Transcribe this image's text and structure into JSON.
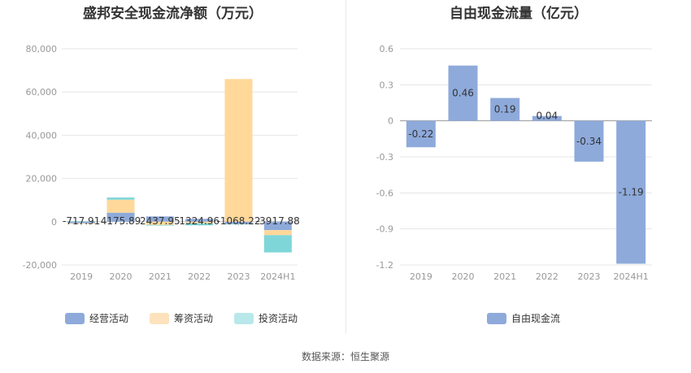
{
  "left": {
    "title": "盛邦安全现金流净额（万元）",
    "legend": [
      "经营活动",
      "筹资活动",
      "投资活动"
    ],
    "colors": {
      "operating": "#8eaadb",
      "financing": "#ffd89a",
      "investing": "#7fd6d9"
    },
    "legend_colors": {
      "operating": "#8eaadb",
      "financing": "#fde2bd",
      "investing": "#b9e8ea"
    }
  },
  "right": {
    "title": "自由现金流量（亿元）",
    "legend": [
      "自由现金流"
    ],
    "colors": {
      "fcf": "#8eaadb"
    }
  },
  "source": "数据来源：恒生聚源",
  "chart_data": [
    {
      "type": "bar",
      "stacked": true,
      "title": "盛邦安全现金流净额（万元）",
      "categories": [
        "2019",
        "2020",
        "2021",
        "2022",
        "2023",
        "2024H1"
      ],
      "ylim": [
        -20000,
        80000
      ],
      "yticks": [
        80000,
        60000,
        40000,
        20000,
        0,
        -20000
      ],
      "ytick_labels": [
        "80,000",
        "60,000",
        "40,000",
        "20,000",
        "0",
        "-20,000"
      ],
      "series": [
        {
          "name": "经营活动",
          "values": [
            -717.91,
            4175.89,
            2437.95,
            1324.96,
            -1068.22,
            -3917.88
          ]
        },
        {
          "name": "筹资活动",
          "values": [
            -300,
            6000,
            -1500,
            -700,
            66000,
            -2300
          ]
        },
        {
          "name": "投资活动",
          "values": [
            200,
            1000,
            -300,
            -1000,
            -200,
            -8000
          ]
        }
      ],
      "data_labels": [
        "-717.91",
        "4175.89",
        "2437.95",
        "1324.96",
        "-1068.22",
        "-3917.88"
      ],
      "legend_position": "bottom"
    },
    {
      "type": "bar",
      "title": "自由现金流量（亿元）",
      "categories": [
        "2019",
        "2020",
        "2021",
        "2022",
        "2023",
        "2024H1"
      ],
      "ylim": [
        -1.2,
        0.6
      ],
      "yticks": [
        0.6,
        0.3,
        0,
        -0.3,
        -0.6,
        -0.9,
        -1.2
      ],
      "ytick_labels": [
        "0.6",
        "0.3",
        "0",
        "-0.3",
        "-0.6",
        "-0.9",
        "-1.2"
      ],
      "series": [
        {
          "name": "自由现金流",
          "values": [
            -0.22,
            0.46,
            0.19,
            0.04,
            -0.34,
            -1.19
          ]
        }
      ],
      "data_labels": [
        "-0.22",
        "0.46",
        "0.19",
        "0.04",
        "-0.34",
        "-1.19"
      ],
      "legend_position": "bottom"
    }
  ]
}
